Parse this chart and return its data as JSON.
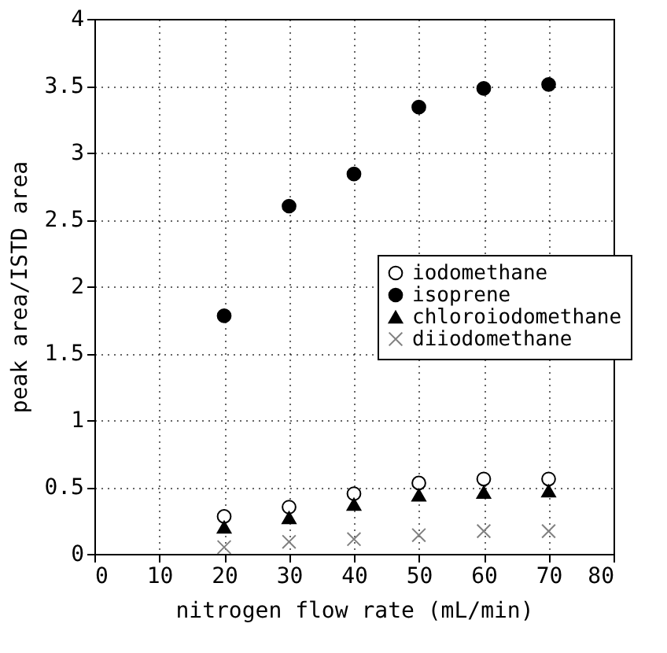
{
  "chart_data": {
    "type": "scatter",
    "xlabel": "nitrogen flow rate (mL/min)",
    "ylabel": "peak area/ISTD area",
    "x": [
      20,
      30,
      40,
      50,
      60,
      70
    ],
    "series": [
      {
        "name": "iodomethane",
        "color": "#ffffff",
        "marker": "circle",
        "values": [
          0.28,
          0.35,
          0.45,
          0.53,
          0.56,
          0.56
        ]
      },
      {
        "name": "isoprene",
        "color": "#000000",
        "marker": "circle",
        "values": [
          1.78,
          2.6,
          2.84,
          3.34,
          3.48,
          3.51
        ]
      },
      {
        "name": "chloroiodomethane",
        "color": "#000000",
        "marker": "triangle",
        "values": [
          0.2,
          0.27,
          0.37,
          0.44,
          0.46,
          0.47
        ]
      },
      {
        "name": "diiodomethane",
        "color": "#808080",
        "marker": "cross",
        "values": [
          0.05,
          0.09,
          0.11,
          0.14,
          0.17,
          0.17
        ]
      }
    ],
    "xlim": [
      0,
      80
    ],
    "xticks": [
      0,
      10,
      20,
      30,
      40,
      50,
      60,
      70,
      80
    ],
    "ylim": [
      0,
      4
    ],
    "yticks": [
      0,
      0.5,
      1,
      1.5,
      2,
      2.5,
      3,
      3.5,
      4
    ],
    "grid": true,
    "legend": "right"
  }
}
